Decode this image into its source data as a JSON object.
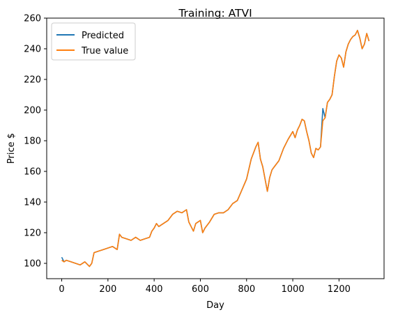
{
  "chart_data": {
    "type": "line",
    "title": "Training: ATVI",
    "xlabel": "Day",
    "ylabel": "Price $",
    "xlim": [
      -65,
      1395
    ],
    "ylim": [
      90,
      260
    ],
    "x_ticks": [
      0,
      200,
      400,
      600,
      800,
      1000,
      1200
    ],
    "y_ticks": [
      100,
      120,
      140,
      160,
      180,
      200,
      220,
      240,
      260
    ],
    "x_tick_labels": [
      "0",
      "200",
      "400",
      "600",
      "800",
      "1000",
      "1200"
    ],
    "y_tick_labels": [
      "100",
      "120",
      "140",
      "160",
      "180",
      "200",
      "220",
      "240",
      "260"
    ],
    "grid": false,
    "legend_position": "upper-left",
    "series": [
      {
        "name": "Predicted",
        "color": "#1f77b4",
        "x": [
          0,
          10,
          20,
          40,
          60,
          80,
          100,
          120,
          130,
          140,
          160,
          180,
          200,
          220,
          240,
          250,
          260,
          280,
          300,
          320,
          340,
          360,
          380,
          390,
          400,
          410,
          420,
          440,
          460,
          480,
          500,
          520,
          540,
          550,
          560,
          570,
          580,
          600,
          610,
          620,
          640,
          660,
          680,
          700,
          720,
          740,
          760,
          780,
          800,
          820,
          840,
          850,
          860,
          870,
          880,
          890,
          900,
          910,
          920,
          940,
          960,
          980,
          1000,
          1010,
          1020,
          1030,
          1040,
          1050,
          1060,
          1070,
          1080,
          1090,
          1100,
          1110,
          1120,
          1130,
          1140,
          1150,
          1160,
          1170,
          1180,
          1190,
          1200,
          1210,
          1220,
          1230,
          1240,
          1250,
          1260,
          1270,
          1280,
          1290,
          1300,
          1310,
          1320,
          1330
        ],
        "values": [
          104,
          101,
          102,
          101,
          100,
          99,
          101,
          98,
          100,
          107,
          108,
          109,
          110,
          111,
          109,
          119,
          117,
          116,
          115,
          117,
          115,
          116,
          117,
          121,
          123,
          126,
          124,
          126,
          128,
          132,
          134,
          133,
          135,
          127,
          124,
          121,
          126,
          128,
          120,
          123,
          127,
          132,
          133,
          133,
          135,
          139,
          141,
          148,
          155,
          168,
          176,
          179,
          168,
          163,
          155,
          147,
          156,
          161,
          163,
          167,
          175,
          181,
          186,
          182,
          187,
          190,
          194,
          193,
          186,
          180,
          172,
          169,
          175,
          174,
          176,
          201,
          195,
          205,
          207,
          210,
          222,
          232,
          236,
          234,
          228,
          238,
          243,
          246,
          248,
          249,
          252,
          247,
          240,
          243,
          250,
          245
        ]
      },
      {
        "name": "True value",
        "color": "#ff7f0e",
        "x": [
          0,
          10,
          20,
          40,
          60,
          80,
          100,
          120,
          130,
          140,
          160,
          180,
          200,
          220,
          240,
          250,
          260,
          280,
          300,
          320,
          340,
          360,
          380,
          390,
          400,
          410,
          420,
          440,
          460,
          480,
          500,
          520,
          540,
          550,
          560,
          570,
          580,
          600,
          610,
          620,
          640,
          660,
          680,
          700,
          720,
          740,
          760,
          780,
          800,
          820,
          840,
          850,
          860,
          870,
          880,
          890,
          900,
          910,
          920,
          940,
          960,
          980,
          1000,
          1010,
          1020,
          1030,
          1040,
          1050,
          1060,
          1070,
          1080,
          1090,
          1100,
          1110,
          1120,
          1130,
          1140,
          1150,
          1160,
          1170,
          1180,
          1190,
          1200,
          1210,
          1220,
          1230,
          1240,
          1250,
          1260,
          1270,
          1280,
          1290,
          1300,
          1310,
          1320,
          1330
        ],
        "values": [
          102,
          101,
          102,
          101,
          100,
          99,
          101,
          98,
          100,
          107,
          108,
          109,
          110,
          111,
          109,
          119,
          117,
          116,
          115,
          117,
          115,
          116,
          117,
          121,
          123,
          126,
          124,
          126,
          128,
          132,
          134,
          133,
          135,
          127,
          124,
          121,
          126,
          128,
          120,
          123,
          127,
          132,
          133,
          133,
          135,
          139,
          141,
          148,
          155,
          168,
          176,
          179,
          168,
          163,
          155,
          147,
          156,
          161,
          163,
          167,
          175,
          181,
          186,
          182,
          187,
          190,
          194,
          193,
          186,
          180,
          172,
          169,
          175,
          174,
          176,
          193,
          195,
          205,
          207,
          210,
          222,
          232,
          236,
          234,
          228,
          238,
          243,
          246,
          248,
          249,
          252,
          247,
          240,
          243,
          250,
          245
        ]
      }
    ]
  }
}
